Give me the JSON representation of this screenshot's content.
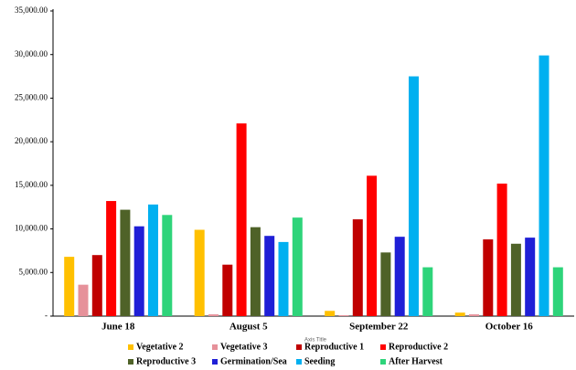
{
  "chart_data": {
    "type": "bar",
    "x_label": "Axis Title",
    "categories": [
      "June 18",
      "August 5",
      "September 22",
      "October 16"
    ],
    "series": [
      {
        "name": "Vegetative 2",
        "color": "#ffc000",
        "values": [
          6800,
          9900,
          600,
          400
        ]
      },
      {
        "name": "Vegetative 3",
        "color": "#e6919a",
        "values": [
          3600,
          200,
          100,
          200
        ]
      },
      {
        "name": "Reproductive 1",
        "color": "#c00000",
        "values": [
          7000,
          5900,
          11100,
          8800
        ]
      },
      {
        "name": "Reproductive 2",
        "color": "#ff0000",
        "values": [
          13200,
          22100,
          16100,
          15200
        ]
      },
      {
        "name": "Reproductive 3",
        "color": "#4f6228",
        "values": [
          12200,
          10200,
          7300,
          8300
        ]
      },
      {
        "name": "Germination/Sea",
        "color": "#1f1fd6",
        "values": [
          10300,
          9200,
          9100,
          9000
        ]
      },
      {
        "name": "Seeding",
        "color": "#00b0f0",
        "values": [
          12800,
          8500,
          27500,
          29900
        ]
      },
      {
        "name": "After Harvest",
        "color": "#2ed47a",
        "values": [
          11600,
          11300,
          5600,
          5600
        ]
      }
    ],
    "ylim": [
      0,
      35000
    ],
    "yticks": [
      {
        "value": 0,
        "label": "-"
      },
      {
        "value": 5000,
        "label": "5,000.00"
      },
      {
        "value": 10000,
        "label": "10,000.00"
      },
      {
        "value": 15000,
        "label": "15,000.00"
      },
      {
        "value": 20000,
        "label": "20,000.00"
      },
      {
        "value": 25000,
        "label": "25,000.00"
      },
      {
        "value": 30000,
        "label": "30,000.00"
      },
      {
        "value": 35000,
        "label": "35,000.00"
      }
    ],
    "grid": false,
    "legend": "bottom"
  }
}
